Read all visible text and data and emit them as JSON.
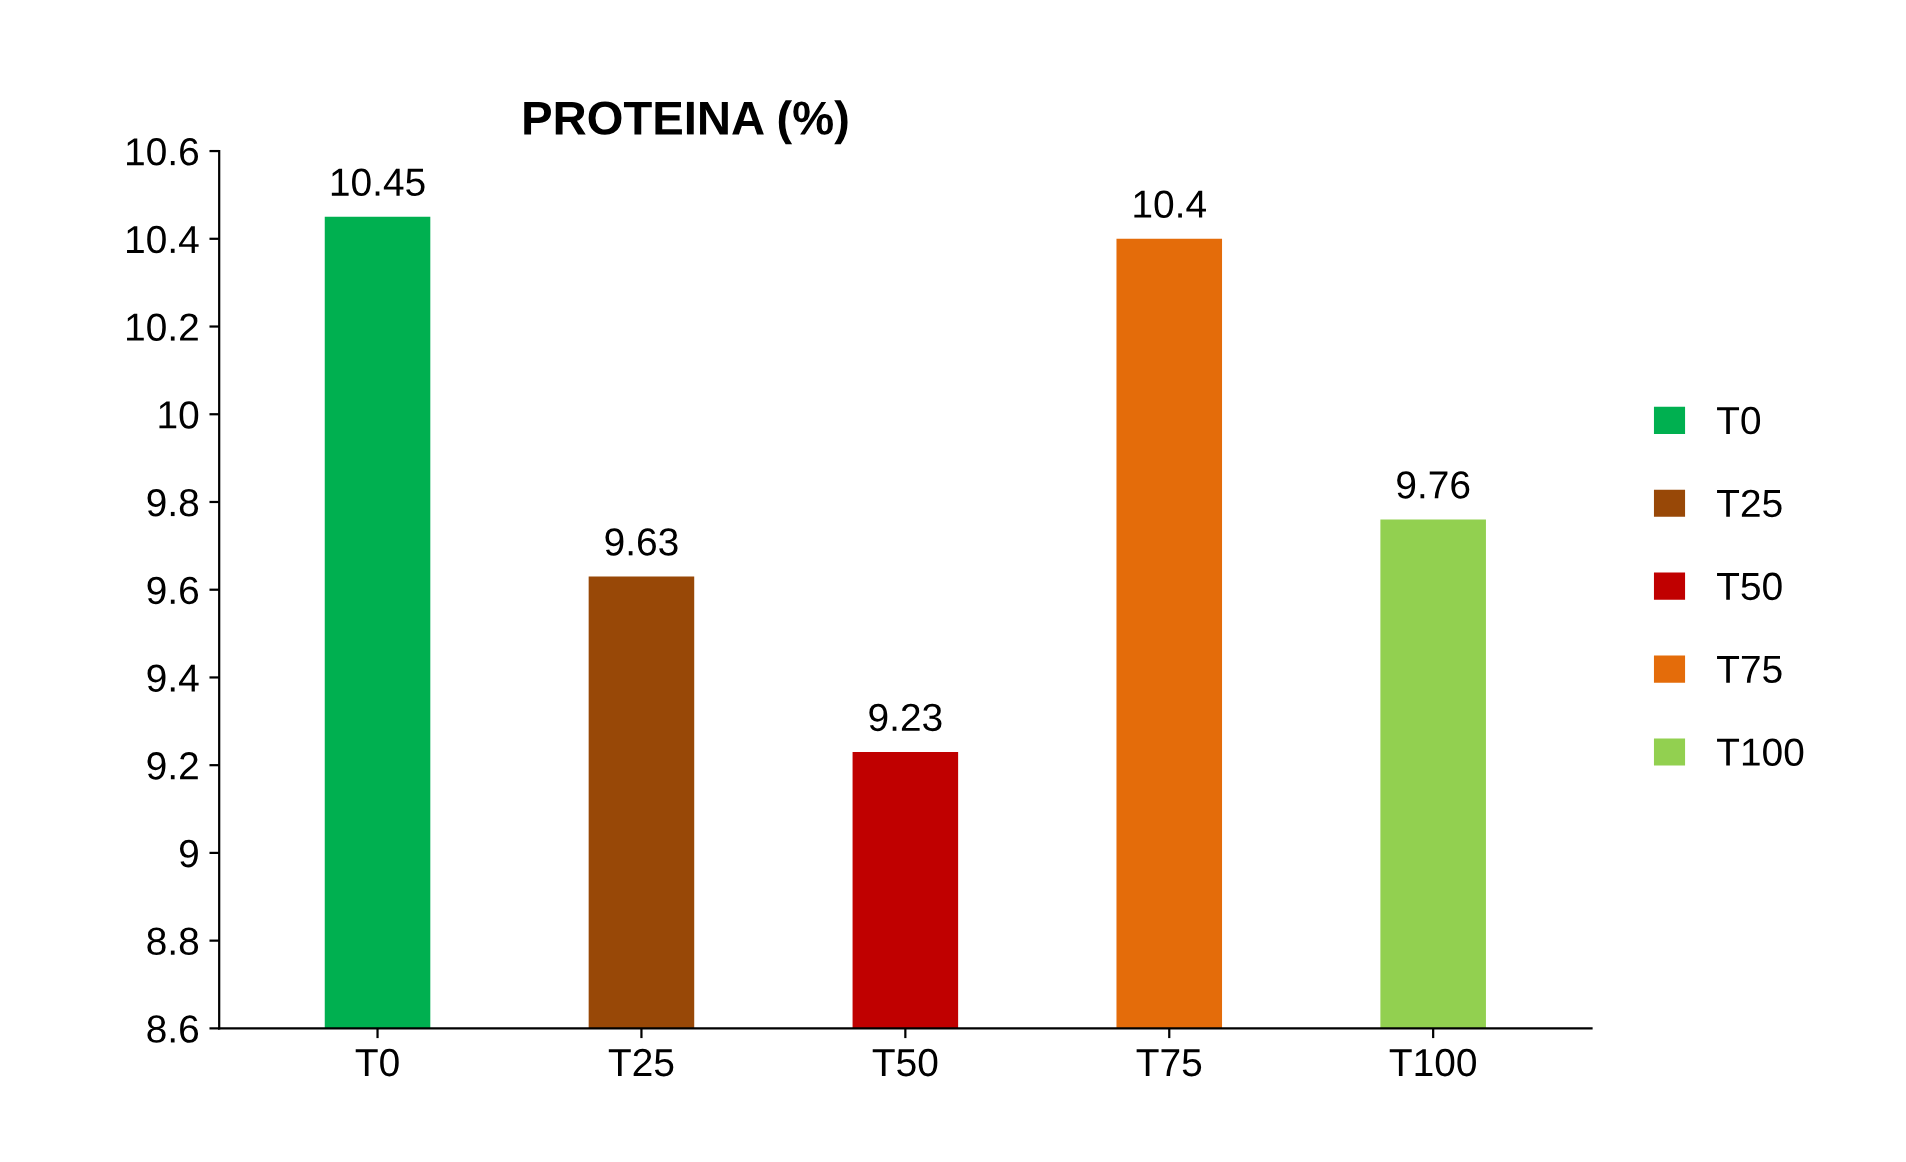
{
  "chart_data": {
    "type": "bar",
    "title": "PROTEINA (%)",
    "categories": [
      "T0",
      "T25",
      "T50",
      "T75",
      "T100"
    ],
    "series": [
      {
        "name": "T0",
        "color": "#00b050",
        "values": [
          10.45,
          null,
          null,
          null,
          null
        ]
      },
      {
        "name": "T25",
        "color": "#984807",
        "values": [
          null,
          9.63,
          null,
          null,
          null
        ]
      },
      {
        "name": "T50",
        "color": "#c00000",
        "values": [
          null,
          null,
          9.23,
          null,
          null
        ]
      },
      {
        "name": "T75",
        "color": "#e46c0a",
        "values": [
          null,
          null,
          null,
          10.4,
          null
        ]
      },
      {
        "name": "T100",
        "color": "#92d050",
        "values": [
          null,
          null,
          null,
          null,
          9.76
        ]
      }
    ],
    "ylim": [
      8.6,
      10.6
    ],
    "yticks": [
      8.6,
      8.8,
      9,
      9.2,
      9.4,
      9.6,
      9.8,
      10,
      10.2,
      10.4,
      10.6
    ],
    "data_labels": true,
    "legend": "right",
    "grid": false
  }
}
